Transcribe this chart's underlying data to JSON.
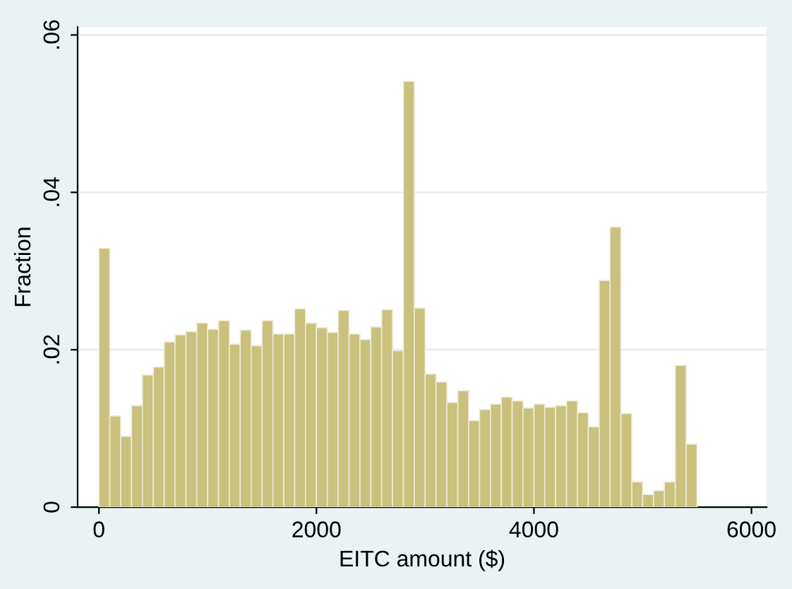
{
  "chart_data": {
    "type": "histogram",
    "xlabel": "EITC amount ($)",
    "ylabel": "Fraction",
    "bins": [
      0,
      100,
      200,
      300,
      400,
      500,
      600,
      700,
      800,
      900,
      1000,
      1100,
      1200,
      1300,
      1400,
      1500,
      1600,
      1700,
      1800,
      1900,
      2000,
      2100,
      2200,
      2300,
      2400,
      2500,
      2600,
      2700,
      2800,
      2900,
      3000,
      3100,
      3200,
      3300,
      3400,
      3500,
      3600,
      3700,
      3800,
      3900,
      4000,
      4100,
      4200,
      4300,
      4400,
      4500,
      4600,
      4700,
      4800,
      4900,
      5000,
      5100,
      5200,
      5300,
      5400,
      5500
    ],
    "values": [
      0.0329,
      0.0116,
      0.009,
      0.0129,
      0.0168,
      0.0178,
      0.021,
      0.0219,
      0.0223,
      0.0234,
      0.0226,
      0.0237,
      0.0207,
      0.0225,
      0.0205,
      0.0237,
      0.022,
      0.022,
      0.0252,
      0.0234,
      0.0228,
      0.0222,
      0.025,
      0.022,
      0.0213,
      0.0229,
      0.0251,
      0.0199,
      0.0541,
      0.0253,
      0.0169,
      0.0159,
      0.0133,
      0.0148,
      0.011,
      0.0124,
      0.0131,
      0.014,
      0.0135,
      0.0126,
      0.0131,
      0.0127,
      0.0129,
      0.0135,
      0.012,
      0.0102,
      0.0288,
      0.0356,
      0.0119,
      0.0032,
      0.0016,
      0.0021,
      0.0032,
      0.018,
      0.008
    ],
    "color": "#c9c17d",
    "xlim": [
      -196,
      6140
    ],
    "xticks": [
      0,
      2000,
      4000,
      6000
    ],
    "ylim": [
      0,
      0.061
    ],
    "yticks": [
      {
        "value": 0,
        "label": "0"
      },
      {
        "value": 0.02,
        "label": ".02"
      },
      {
        "value": 0.04,
        "label": ".04"
      },
      {
        "value": 0.06,
        "label": ".06"
      }
    ],
    "grid": "y",
    "legend": false
  }
}
